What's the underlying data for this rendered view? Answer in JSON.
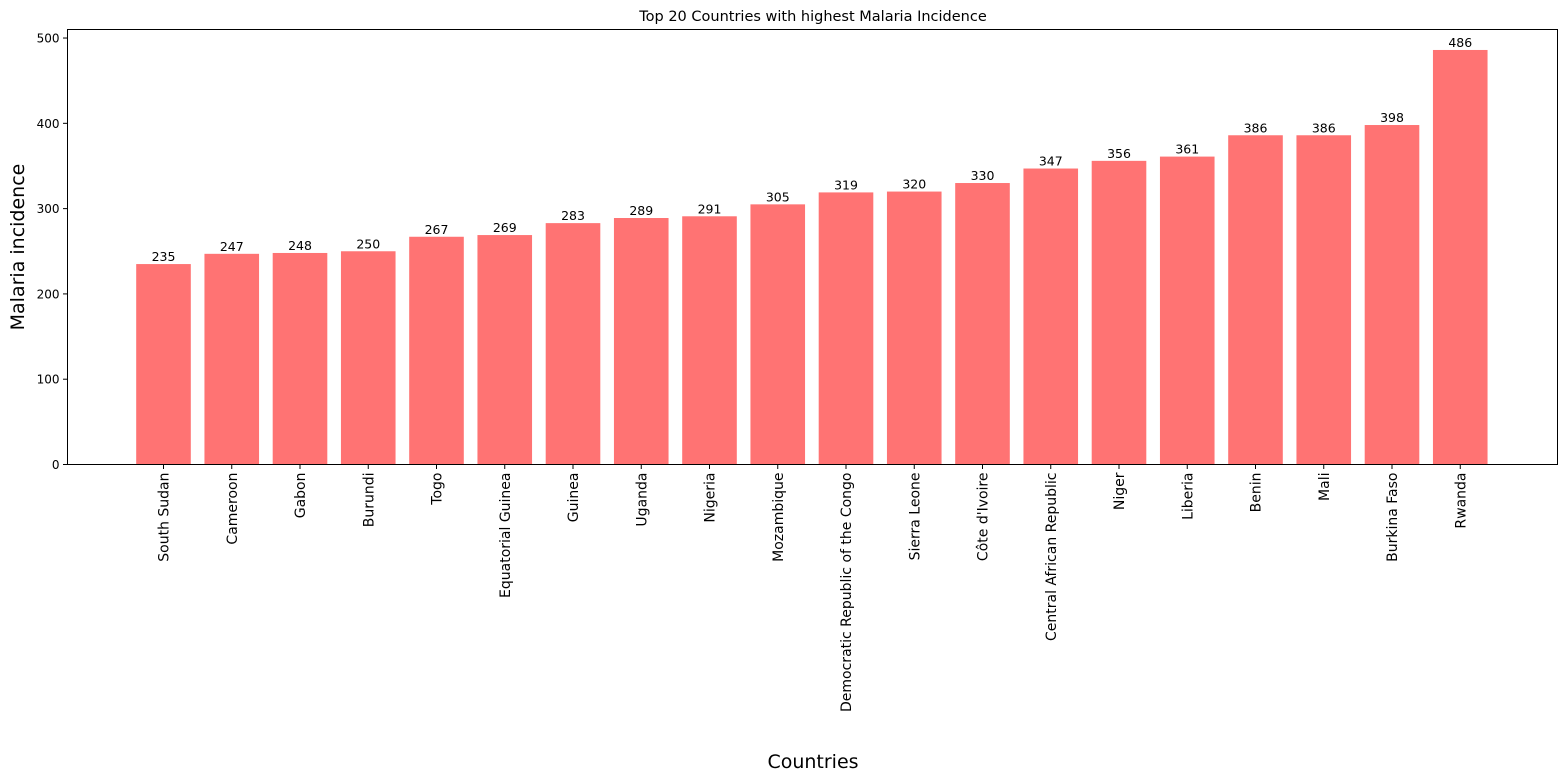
{
  "chart_data": {
    "type": "bar",
    "title": "Top 20 Countries with highest Malaria Incidence",
    "xlabel": "Countries",
    "ylabel": "Malaria incidence",
    "ylim": [
      0,
      510
    ],
    "yticks": [
      0,
      100,
      200,
      300,
      400,
      500
    ],
    "grid": false,
    "bar_color": "#ff7373",
    "categories": [
      "South Sudan",
      "Cameroon",
      "Gabon",
      "Burundi",
      "Togo",
      "Equatorial Guinea",
      "Guinea",
      "Uganda",
      "Nigeria",
      "Mozambique",
      "Democratic Republic of the Congo",
      "Sierra Leone",
      "Côte d'Ivoire",
      "Central African Republic",
      "Niger",
      "Liberia",
      "Benin",
      "Mali",
      "Burkina Faso",
      "Rwanda"
    ],
    "values": [
      235,
      247,
      248,
      250,
      267,
      269,
      283,
      289,
      291,
      305,
      319,
      320,
      330,
      347,
      356,
      361,
      386,
      386,
      398,
      486
    ]
  }
}
